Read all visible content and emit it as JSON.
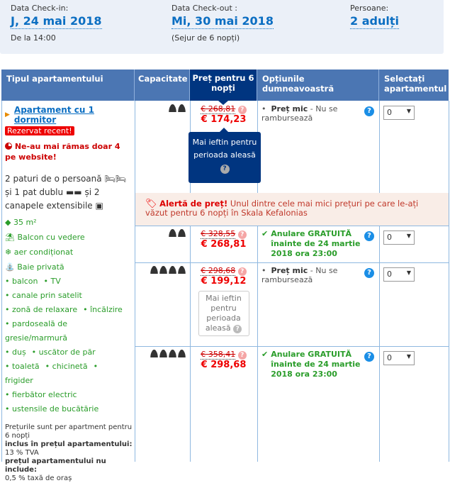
{
  "search": {
    "checkin_label": "Data Check-in:",
    "checkin_value": "J, 24 mai 2018",
    "checkin_note": "De la 14:00",
    "checkout_label": "Data Check-out :",
    "checkout_value": "Mi, 30 mai 2018",
    "checkout_note": "(Sejur de 6 nopți)",
    "persons_label": "Persoane:",
    "persons_value": "2 adulți"
  },
  "table": {
    "headers": [
      "Tipul apartamentului",
      "Capacitate",
      "Preț pentru 6 nopți",
      "Opțiunile dumneavoastră",
      "Selectați apartamentul"
    ]
  },
  "room": {
    "name": "Apartament cu 1 dormitor",
    "badge": "Rezervat recent!",
    "scarcity": "Ne-au mai rămas doar 4 pe website!",
    "beds": [
      "2 paturi de o persoană",
      "și 1 pat dublu",
      "și 2",
      "canapele extensibile"
    ],
    "size": "35 m²",
    "features": [
      "Balcon cu vedere",
      "aer condiționat",
      "Baie privată"
    ],
    "facilities": [
      [
        "balcon",
        "TV"
      ],
      [
        "canale prin satelit"
      ],
      [
        "zonă de relaxare",
        "încălzire"
      ],
      [
        "pardoseală de gresie/marmură"
      ],
      [
        "duș",
        "uscător de păr"
      ],
      [
        "toaletă",
        "chicinetă",
        "frigider"
      ],
      [
        "fierbător electric"
      ],
      [
        "ustensile de bucătărie"
      ]
    ],
    "price_note": "Prețurile sunt per apartment pentru 6 nopți",
    "included_label": "inclus în prețul apartamentului:",
    "included": "13 % TVA",
    "excluded_label": "prețul apartamentului nu include:",
    "excluded": "0,5 % taxă de oraș"
  },
  "tooltip": {
    "text": "Mai ieftin pentru perioada aleasă",
    "icon": "?"
  },
  "alert": {
    "title": "Alertă de preț!",
    "text": "Unul dintre cele mai mici prețuri pe care le-ați văzut pentru 6 nopți în Skala Kefalonias"
  },
  "rows": [
    {
      "capacity": 2,
      "old_price": "€ 268,81",
      "new_price": "€ 174,23",
      "option_bold": "Preț mic",
      "option_text": " - Nu se rambursează",
      "option_type": "nonrefund",
      "select": "0"
    },
    {
      "capacity": 2,
      "old_price": "€ 328,55",
      "new_price": "€ 268,81",
      "option_bold": "Anulare GRATUITĂ înainte de 24 martie 2018 ora 23:00",
      "option_text": "",
      "option_type": "free",
      "select": "0"
    },
    {
      "capacity": 4,
      "old_price": "€ 298,68",
      "new_price": "€ 199,12",
      "option_bold": "Preț mic",
      "option_text": " - Nu se rambursează",
      "option_type": "nonrefund",
      "select": "0",
      "cheaper_box": "Mai ieftin pentru perioada aleasă"
    },
    {
      "capacity": 4,
      "old_price": "€ 358,41",
      "new_price": "€ 298,68",
      "option_bold": "Anulare GRATUITĂ înainte de 24 martie 2018 ora 23:00",
      "option_text": "",
      "option_type": "free",
      "select": "0"
    }
  ],
  "colors": {
    "header": "#4b76b3",
    "header_selected": "#003580",
    "price": "#e00000",
    "green": "#2a9d2a",
    "link": "#0b6ec2"
  }
}
